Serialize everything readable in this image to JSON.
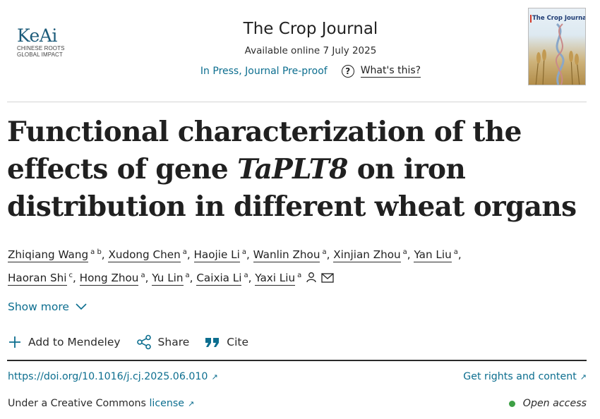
{
  "publisher": {
    "logo_text": "KeAi",
    "logo_sub_line1": "CHINESE ROOTS",
    "logo_sub_line2": "GLOBAL IMPACT"
  },
  "journal": {
    "title": "The Crop Journal",
    "available": "Available online 7 July 2025",
    "status": "In Press, Journal Pre-proof",
    "whats_this": "What's this?",
    "cover_title": "The Crop Journal"
  },
  "article": {
    "title_part1": "Functional characterization of the effects of gene ",
    "title_gene": "TaPLT8",
    "title_part2": " on iron distribution in different wheat organs"
  },
  "authors": [
    {
      "name": "Zhiqiang Wang",
      "aff": "a b"
    },
    {
      "name": "Xudong Chen",
      "aff": "a"
    },
    {
      "name": "Haojie Li",
      "aff": "a"
    },
    {
      "name": "Wanlin Zhou",
      "aff": "a"
    },
    {
      "name": "Xinjian Zhou",
      "aff": "a"
    },
    {
      "name": "Yan Liu",
      "aff": "a"
    },
    {
      "name": "Haoran Shi",
      "aff": "c"
    },
    {
      "name": "Hong Zhou",
      "aff": "a"
    },
    {
      "name": "Yu Lin",
      "aff": "a"
    },
    {
      "name": "Caixia Li",
      "aff": "a"
    },
    {
      "name": "Yaxi Liu",
      "aff": "a"
    }
  ],
  "show_more": "Show more",
  "actions": {
    "mendeley": "Add to Mendeley",
    "share": "Share",
    "cite": "Cite"
  },
  "doi": "https://doi.org/10.1016/j.cj.2025.06.010",
  "rights": "Get rights and content",
  "license_prefix": "Under a Creative Commons",
  "license_link": "license",
  "open_access": "Open access",
  "colors": {
    "link": "#0c6e8f",
    "open_access_dot": "#3ea046",
    "logo": "#1c5b7a"
  }
}
